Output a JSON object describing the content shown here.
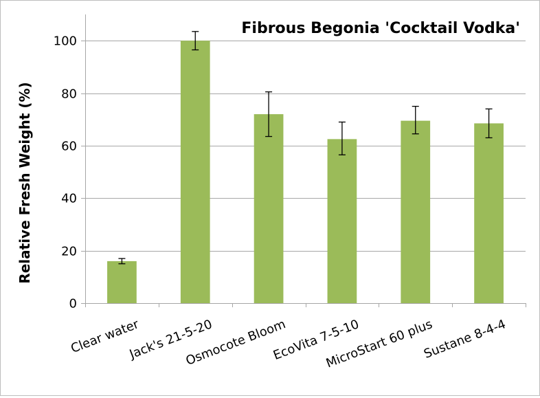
{
  "chart_data": {
    "type": "bar",
    "title": "Fibrous Begonia 'Cocktail Vodka'",
    "ylabel": "Relative Fresh Weight (%)",
    "xlabel": "",
    "ylim": [
      0,
      110
    ],
    "yticks": [
      0,
      20,
      40,
      60,
      80,
      100
    ],
    "grid": true,
    "legend": "none",
    "bar_color": "#9bbb59",
    "categories": [
      "Clear water",
      "Jack's 21-5-20",
      "Osmocote Bloom",
      "EcoVita 7-5-10",
      "MicroStart 60 plus",
      "Sustane 8-4-4"
    ],
    "values": [
      16,
      100,
      72,
      62.5,
      69.5,
      68.5
    ],
    "error_low": [
      15,
      96.5,
      63.5,
      56.5,
      64.5,
      63
    ],
    "error_high": [
      17,
      103.5,
      80.5,
      69,
      75,
      74
    ]
  }
}
